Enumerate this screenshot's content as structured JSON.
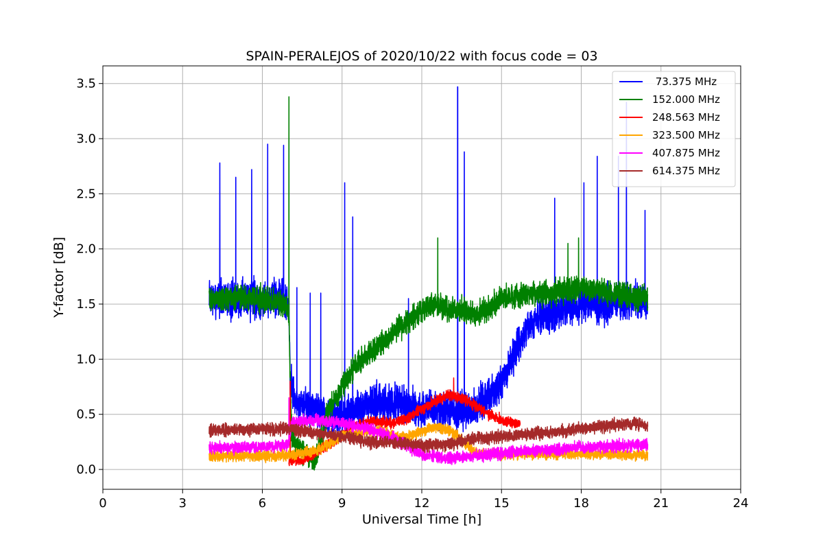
{
  "chart_data": {
    "type": "line",
    "title": "SPAIN-PERALEJOS of 2020/10/22 with focus code = 03",
    "xlabel": "Universal Time [h]",
    "ylabel": "Y-factor [dB]",
    "xlim": [
      0,
      24
    ],
    "ylim": [
      -0.18,
      3.66
    ],
    "xticks": [
      0,
      3,
      6,
      9,
      12,
      15,
      18,
      21,
      24
    ],
    "yticks": [
      0.0,
      0.5,
      1.0,
      1.5,
      2.0,
      2.5,
      3.0,
      3.5
    ],
    "xtick_labels": [
      "0",
      "3",
      "6",
      "9",
      "12",
      "15",
      "18",
      "21",
      "24"
    ],
    "ytick_labels": [
      "0.0",
      "0.5",
      "1.0",
      "1.5",
      "2.0",
      "2.5",
      "3.0",
      "3.5"
    ],
    "grid": true,
    "legend_position": "top-right",
    "series": [
      {
        "name": " 73.375 MHz",
        "color": "#0000ff",
        "noise": 0.12,
        "points": [
          [
            4.0,
            1.55
          ],
          [
            5.0,
            1.55
          ],
          [
            6.0,
            1.55
          ],
          [
            6.8,
            1.55
          ],
          [
            7.0,
            1.45
          ],
          [
            7.05,
            0.8
          ],
          [
            7.3,
            0.6
          ],
          [
            8.0,
            0.55
          ],
          [
            8.5,
            0.45
          ],
          [
            9.0,
            0.5
          ],
          [
            9.5,
            0.55
          ],
          [
            10.0,
            0.6
          ],
          [
            11.0,
            0.6
          ],
          [
            12.0,
            0.55
          ],
          [
            13.0,
            0.55
          ],
          [
            14.0,
            0.55
          ],
          [
            14.5,
            0.65
          ],
          [
            15.0,
            0.8
          ],
          [
            15.5,
            1.05
          ],
          [
            16.0,
            1.3
          ],
          [
            16.5,
            1.4
          ],
          [
            17.0,
            1.42
          ],
          [
            18.0,
            1.5
          ],
          [
            19.0,
            1.5
          ],
          [
            20.0,
            1.55
          ],
          [
            20.5,
            1.5
          ]
        ],
        "spikes": [
          [
            4.4,
            2.78
          ],
          [
            5.0,
            2.65
          ],
          [
            5.6,
            2.72
          ],
          [
            6.2,
            2.95
          ],
          [
            6.8,
            2.94
          ],
          [
            7.3,
            1.65
          ],
          [
            7.8,
            1.6
          ],
          [
            8.2,
            1.6
          ],
          [
            9.1,
            2.6
          ],
          [
            9.4,
            2.29
          ],
          [
            11.5,
            1.55
          ],
          [
            13.35,
            3.47
          ],
          [
            13.6,
            2.88
          ],
          [
            17.0,
            2.46
          ],
          [
            18.1,
            2.6
          ],
          [
            18.6,
            2.84
          ],
          [
            19.4,
            2.84
          ],
          [
            19.7,
            3.33
          ],
          [
            20.4,
            2.35
          ]
        ]
      },
      {
        "name": "152.000 MHz",
        "color": "#008000",
        "noise": 0.08,
        "points": [
          [
            4.0,
            1.55
          ],
          [
            5.0,
            1.55
          ],
          [
            6.0,
            1.55
          ],
          [
            6.9,
            1.5
          ],
          [
            7.0,
            1.4
          ],
          [
            7.1,
            0.3
          ],
          [
            7.5,
            0.15
          ],
          [
            8.0,
            0.1
          ],
          [
            8.5,
            0.55
          ],
          [
            9.0,
            0.75
          ],
          [
            9.5,
            0.95
          ],
          [
            10.0,
            1.05
          ],
          [
            10.5,
            1.15
          ],
          [
            11.0,
            1.25
          ],
          [
            11.5,
            1.35
          ],
          [
            12.0,
            1.45
          ],
          [
            12.5,
            1.5
          ],
          [
            13.0,
            1.45
          ],
          [
            13.5,
            1.45
          ],
          [
            14.0,
            1.4
          ],
          [
            14.5,
            1.45
          ],
          [
            15.0,
            1.55
          ],
          [
            16.0,
            1.6
          ],
          [
            17.0,
            1.6
          ],
          [
            18.0,
            1.65
          ],
          [
            19.0,
            1.6
          ],
          [
            20.0,
            1.58
          ],
          [
            20.5,
            1.55
          ]
        ],
        "spikes": [
          [
            7.0,
            3.38
          ],
          [
            12.6,
            2.1
          ],
          [
            17.5,
            2.05
          ],
          [
            17.9,
            2.1
          ]
        ]
      },
      {
        "name": "248.563 MHz",
        "color": "#ff0000",
        "noise": 0.035,
        "points": [
          [
            7.0,
            0.08
          ],
          [
            7.5,
            0.08
          ],
          [
            8.0,
            0.15
          ],
          [
            9.0,
            0.3
          ],
          [
            9.5,
            0.4
          ],
          [
            10.0,
            0.43
          ],
          [
            10.5,
            0.43
          ],
          [
            11.0,
            0.42
          ],
          [
            11.5,
            0.47
          ],
          [
            12.0,
            0.55
          ],
          [
            12.5,
            0.62
          ],
          [
            13.0,
            0.67
          ],
          [
            13.5,
            0.65
          ],
          [
            14.0,
            0.58
          ],
          [
            14.5,
            0.5
          ],
          [
            15.0,
            0.45
          ],
          [
            15.5,
            0.42
          ],
          [
            15.7,
            0.42
          ]
        ],
        "spikes": [
          [
            7.05,
            0.8
          ],
          [
            13.2,
            0.83
          ]
        ]
      },
      {
        "name": "323.500 MHz",
        "color": "#ffa500",
        "noise": 0.035,
        "points": [
          [
            4.0,
            0.12
          ],
          [
            5.0,
            0.12
          ],
          [
            6.0,
            0.12
          ],
          [
            7.0,
            0.13
          ],
          [
            8.0,
            0.17
          ],
          [
            9.0,
            0.3
          ],
          [
            10.0,
            0.35
          ],
          [
            10.5,
            0.35
          ],
          [
            11.0,
            0.3
          ],
          [
            11.5,
            0.3
          ],
          [
            12.0,
            0.35
          ],
          [
            12.5,
            0.38
          ],
          [
            13.0,
            0.35
          ],
          [
            13.5,
            0.28
          ],
          [
            14.0,
            0.15
          ],
          [
            15.0,
            0.14
          ],
          [
            16.0,
            0.14
          ],
          [
            17.0,
            0.14
          ],
          [
            18.0,
            0.14
          ],
          [
            19.0,
            0.14
          ],
          [
            20.0,
            0.13
          ],
          [
            20.5,
            0.13
          ]
        ],
        "spikes": []
      },
      {
        "name": "407.875 MHz",
        "color": "#ff00ff",
        "noise": 0.04,
        "points": [
          [
            4.0,
            0.2
          ],
          [
            5.0,
            0.2
          ],
          [
            6.0,
            0.2
          ],
          [
            7.0,
            0.22
          ],
          [
            7.1,
            0.42
          ],
          [
            8.0,
            0.45
          ],
          [
            9.0,
            0.42
          ],
          [
            10.0,
            0.37
          ],
          [
            11.0,
            0.28
          ],
          [
            12.0,
            0.13
          ],
          [
            13.0,
            0.1
          ],
          [
            14.0,
            0.12
          ],
          [
            15.0,
            0.15
          ],
          [
            16.0,
            0.17
          ],
          [
            17.0,
            0.18
          ],
          [
            18.0,
            0.2
          ],
          [
            19.0,
            0.21
          ],
          [
            20.0,
            0.22
          ],
          [
            20.5,
            0.22
          ]
        ],
        "spikes": [
          [
            7.0,
            0.65
          ]
        ]
      },
      {
        "name": "614.375 MHz",
        "color": "#a52a2a",
        "noise": 0.04,
        "points": [
          [
            4.0,
            0.35
          ],
          [
            5.0,
            0.36
          ],
          [
            6.0,
            0.37
          ],
          [
            7.0,
            0.37
          ],
          [
            8.0,
            0.33
          ],
          [
            9.0,
            0.3
          ],
          [
            10.0,
            0.25
          ],
          [
            11.0,
            0.24
          ],
          [
            12.0,
            0.22
          ],
          [
            13.0,
            0.23
          ],
          [
            14.0,
            0.28
          ],
          [
            15.0,
            0.3
          ],
          [
            16.0,
            0.32
          ],
          [
            17.0,
            0.34
          ],
          [
            18.0,
            0.37
          ],
          [
            19.0,
            0.4
          ],
          [
            20.0,
            0.42
          ],
          [
            20.5,
            0.4
          ]
        ],
        "spikes": []
      }
    ]
  }
}
